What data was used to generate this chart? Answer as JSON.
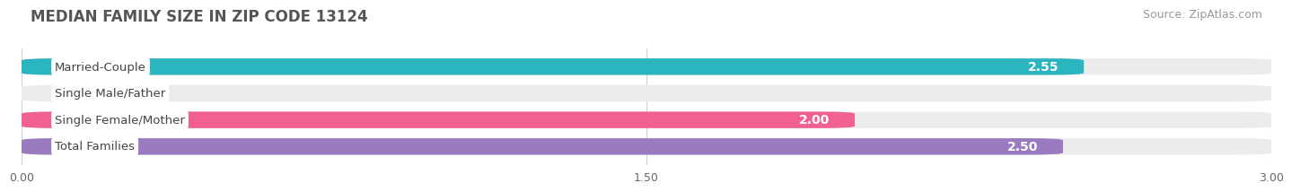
{
  "title": "MEDIAN FAMILY SIZE IN ZIP CODE 13124",
  "source": "Source: ZipAtlas.com",
  "categories": [
    "Married-Couple",
    "Single Male/Father",
    "Single Female/Mother",
    "Total Families"
  ],
  "values": [
    2.55,
    0.0,
    2.0,
    2.5
  ],
  "bar_colors": [
    "#2ab5bf",
    "#a8b8e8",
    "#f06090",
    "#9b7bbf"
  ],
  "xlim": [
    0,
    3.0
  ],
  "xticks": [
    0.0,
    1.5,
    3.0
  ],
  "xtick_labels": [
    "0.00",
    "1.50",
    "3.00"
  ],
  "bar_height": 0.62,
  "bar_gap": 0.38,
  "value_label_color": "#ffffff",
  "value_label_fontsize": 10,
  "category_label_fontsize": 9.5,
  "title_fontsize": 12,
  "source_fontsize": 9,
  "background_color": "#ffffff",
  "bar_bg_color": "#ebebeb",
  "grid_color": "#d0d0d0",
  "title_color": "#555555",
  "source_color": "#999999",
  "category_label_color": "#444444"
}
